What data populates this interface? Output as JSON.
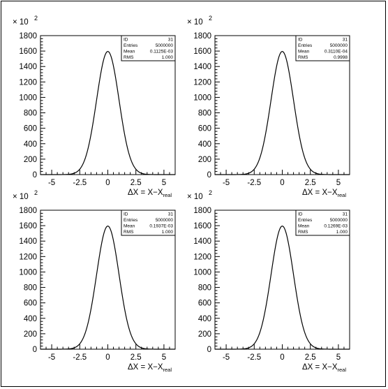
{
  "chart_data": [
    {
      "type": "line",
      "exponent_label": "× 10",
      "exponent_power": "2",
      "xlabel": "ΔX = X−X",
      "xlabel_sub": "real",
      "xticks": [
        "-5",
        "-2.5",
        "0",
        "2.5",
        "5"
      ],
      "yticks": [
        "0",
        "200",
        "400",
        "600",
        "800",
        "1000",
        "1200",
        "1400",
        "1600",
        "1800"
      ],
      "xlim": [
        -6,
        6
      ],
      "ylim": [
        0,
        1800
      ],
      "stats": [
        [
          "ID",
          "31"
        ],
        [
          "Entries",
          "5000000"
        ],
        [
          "Mean",
          "0.1125E-03"
        ],
        [
          "RMS",
          "1.000"
        ]
      ],
      "series": [
        {
          "amplitude": 1595,
          "sigma": 1.0,
          "mean": 0.0001125
        }
      ]
    },
    {
      "type": "line",
      "exponent_label": "× 10",
      "exponent_power": "2",
      "xlabel": "ΔX = X−X",
      "xlabel_sub": "real",
      "xticks": [
        "-5",
        "-2.5",
        "0",
        "2.5",
        "5"
      ],
      "yticks": [
        "0",
        "200",
        "400",
        "600",
        "800",
        "1000",
        "1200",
        "1400",
        "1600",
        "1800"
      ],
      "xlim": [
        -6,
        6
      ],
      "ylim": [
        0,
        1800
      ],
      "stats": [
        [
          "ID",
          "31"
        ],
        [
          "Entries",
          "5000000"
        ],
        [
          "Mean",
          "0.3110E-04"
        ],
        [
          "RMS",
          "0.9998"
        ]
      ],
      "series": [
        {
          "amplitude": 1595,
          "sigma": 1.0,
          "mean": 3.11e-05
        }
      ]
    },
    {
      "type": "line",
      "exponent_label": "× 10",
      "exponent_power": "2",
      "xlabel": "ΔX = X−X",
      "xlabel_sub": "real",
      "xticks": [
        "-5",
        "-2.5",
        "0",
        "2.5",
        "5"
      ],
      "yticks": [
        "0",
        "200",
        "400",
        "600",
        "800",
        "1000",
        "1200",
        "1400",
        "1600",
        "1800"
      ],
      "xlim": [
        -6,
        6
      ],
      "ylim": [
        0,
        1800
      ],
      "stats": [
        [
          "ID",
          "31"
        ],
        [
          "Entries",
          "5000000"
        ],
        [
          "Mean",
          "0.1937E-03"
        ],
        [
          "RMS",
          "1.000"
        ]
      ],
      "series": [
        {
          "amplitude": 1595,
          "sigma": 1.0,
          "mean": 0.0001937
        }
      ]
    },
    {
      "type": "line",
      "exponent_label": "× 10",
      "exponent_power": "2",
      "xlabel": "ΔX = X−X",
      "xlabel_sub": "real",
      "xticks": [
        "-5",
        "-2.5",
        "0",
        "2.5",
        "5"
      ],
      "yticks": [
        "0",
        "200",
        "400",
        "600",
        "800",
        "1000",
        "1200",
        "1400",
        "1600",
        "1800"
      ],
      "xlim": [
        -6,
        6
      ],
      "ylim": [
        0,
        1800
      ],
      "stats": [
        [
          "ID",
          "31"
        ],
        [
          "Entries",
          "5000000"
        ],
        [
          "Mean",
          "0.1269E-03"
        ],
        [
          "RMS",
          "1.000"
        ]
      ],
      "series": [
        {
          "amplitude": 1595,
          "sigma": 1.0,
          "mean": 0.0001269
        }
      ]
    }
  ]
}
